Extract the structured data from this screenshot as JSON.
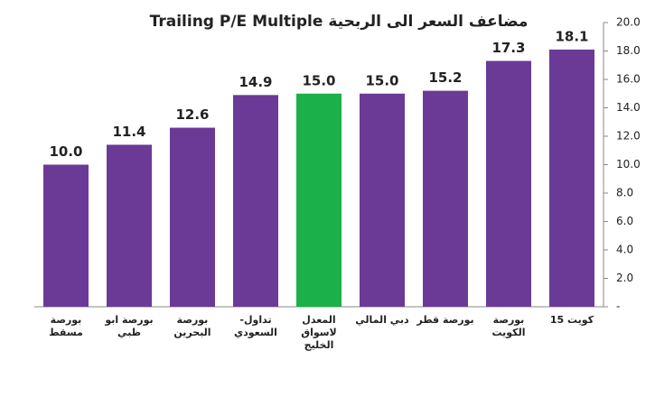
{
  "chart_data": {
    "type": "bar",
    "title": "Trailing P/E Multiple  مضاعف السعر الى الربحية",
    "categories": [
      "بورصة\nمسقط",
      "بورصة ابو\nظبي",
      "بورصة\nالبحرين",
      "تداول-\nالسعودي",
      "المعدل\nلاسواق\nالخليج",
      "دبي المالي",
      "بورصة قطر",
      "بورصة\nالكويت",
      "كويت 15"
    ],
    "values": [
      10.0,
      11.4,
      12.6,
      14.9,
      15.0,
      15.0,
      15.2,
      17.3,
      18.1
    ],
    "value_labels": [
      "10.0",
      "11.4",
      "12.6",
      "14.9",
      "15.0",
      "15.0",
      "15.2",
      "17.3",
      "18.1"
    ],
    "colors": [
      "#6b3a96",
      "#6b3a96",
      "#6b3a96",
      "#6b3a96",
      "#1cb04a",
      "#6b3a96",
      "#6b3a96",
      "#6b3a96",
      "#6b3a96"
    ],
    "ylim": [
      0,
      20
    ],
    "yticks": [
      {
        "value": 0,
        "label": "-"
      },
      {
        "value": 2,
        "label": "2.0"
      },
      {
        "value": 4,
        "label": "4.0"
      },
      {
        "value": 6,
        "label": "6.0"
      },
      {
        "value": 8,
        "label": "8.0"
      },
      {
        "value": 10,
        "label": "10.0"
      },
      {
        "value": 12,
        "label": "12.0"
      },
      {
        "value": 14,
        "label": "14.0"
      },
      {
        "value": 16,
        "label": "16.0"
      },
      {
        "value": 18,
        "label": "18.0"
      },
      {
        "value": 20,
        "label": "20.0"
      }
    ],
    "y_axis_side": "right"
  }
}
